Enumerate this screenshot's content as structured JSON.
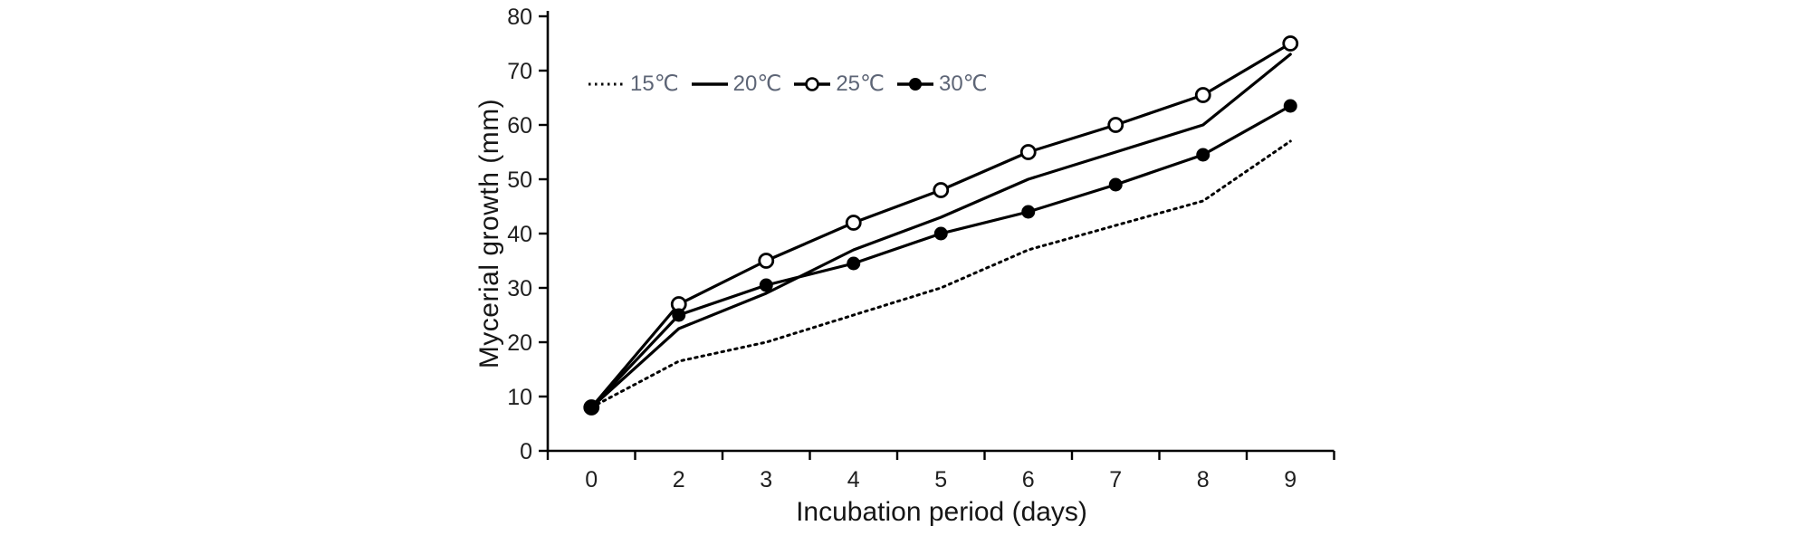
{
  "chart_data": {
    "type": "line",
    "title": "",
    "xlabel": "Incubation period (days)",
    "ylabel": "Mycerial growth (mm)",
    "x_categories": [
      "0",
      "2",
      "3",
      "4",
      "5",
      "6",
      "7",
      "8",
      "9"
    ],
    "yticks": [
      0,
      10,
      20,
      30,
      40,
      50,
      60,
      70,
      80
    ],
    "ylim": [
      0,
      80
    ],
    "grid": false,
    "legend_position": "inside-top-left",
    "series": [
      {
        "name": "15℃",
        "line": "dotted",
        "marker": "none",
        "values": [
          8,
          16.5,
          20,
          25,
          30,
          37,
          41.5,
          46,
          57
        ]
      },
      {
        "name": "20℃",
        "line": "solid",
        "marker": "none",
        "values": [
          8,
          22.5,
          29,
          37,
          43,
          50,
          55,
          60,
          73
        ]
      },
      {
        "name": "25℃",
        "line": "solid",
        "marker": "open-circle",
        "values": [
          8,
          27,
          35,
          42,
          48,
          55,
          60,
          65.5,
          75
        ]
      },
      {
        "name": "30℃",
        "line": "solid",
        "marker": "filled-circle",
        "values": [
          8,
          25,
          30.5,
          34.5,
          40,
          44,
          49,
          54.5,
          63.5
        ]
      }
    ]
  },
  "colors": {
    "line": "#000000",
    "axis": "#000000",
    "tick_text": "#1f1f1f",
    "legend_text": "#5d6576",
    "background": "#ffffff"
  }
}
